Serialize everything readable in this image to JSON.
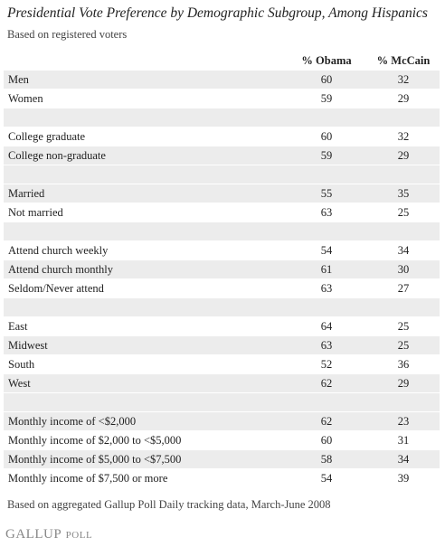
{
  "header": {
    "title": "Presidential Vote Preference by Demographic Subgroup, Among Hispanics",
    "subtitle": "Based on registered voters"
  },
  "table": {
    "columns": [
      "% Obama",
      "% McCain"
    ],
    "groups": [
      [
        [
          "Men",
          60,
          32
        ],
        [
          "Women",
          59,
          29
        ]
      ],
      [
        [
          "College graduate",
          60,
          32
        ],
        [
          "College non-graduate",
          59,
          29
        ]
      ],
      [
        [
          "Married",
          55,
          35
        ],
        [
          "Not married",
          63,
          25
        ]
      ],
      [
        [
          "Attend church weekly",
          54,
          34
        ],
        [
          "Attend church monthly",
          61,
          30
        ],
        [
          "Seldom/Never attend",
          63,
          27
        ]
      ],
      [
        [
          "East",
          64,
          25
        ],
        [
          "Midwest",
          63,
          25
        ],
        [
          "South",
          52,
          36
        ],
        [
          "West",
          62,
          29
        ]
      ],
      [
        [
          "Monthly income of <$2,000",
          62,
          23
        ],
        [
          "Monthly income of $2,000 to <$5,000",
          60,
          31
        ],
        [
          "Monthly income of $5,000 to <$7,500",
          58,
          34
        ],
        [
          "Monthly income of $7,500 or more",
          54,
          39
        ]
      ]
    ]
  },
  "footer": {
    "note": "Based on aggregated Gallup Poll Daily tracking data, March-June 2008",
    "logo_brand": "GALLUP",
    "logo_suffix": "POLL"
  }
}
